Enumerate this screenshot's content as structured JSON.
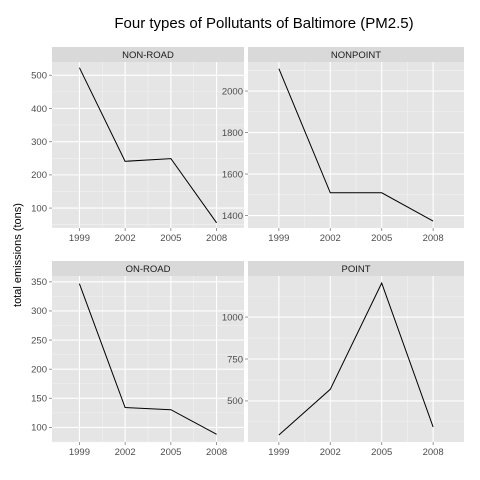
{
  "chart_data": {
    "type": "line",
    "title": "Four types of Pollutants of Baltimore (PM2.5)",
    "xlabel": "",
    "ylabel": "total emissions (tons)",
    "grid": true,
    "x": [
      "1999",
      "2002",
      "2005",
      "2008"
    ],
    "facets": [
      {
        "name": "NON-ROAD",
        "values": [
          522.9,
          240.8,
          248.9,
          55.8
        ],
        "ylim": [
          40,
          540
        ],
        "yticks": [
          100,
          200,
          300,
          400,
          500
        ]
      },
      {
        "name": "NONPOINT",
        "values": [
          2107.6,
          1509.5,
          1509.5,
          1373.2
        ],
        "ylim": [
          1340,
          2140
        ],
        "yticks": [
          1400,
          1600,
          1800,
          2000
        ]
      },
      {
        "name": "ON-ROAD",
        "values": [
          346.8,
          134.3,
          130.4,
          88.3
        ],
        "ylim": [
          75,
          360
        ],
        "yticks": [
          100,
          150,
          200,
          250,
          300,
          350
        ]
      },
      {
        "name": "POINT",
        "values": [
          296.8,
          569.3,
          1202.5,
          344.98
        ],
        "ylim": [
          255,
          1245
        ],
        "yticks": [
          500,
          750,
          1000
        ]
      }
    ]
  }
}
